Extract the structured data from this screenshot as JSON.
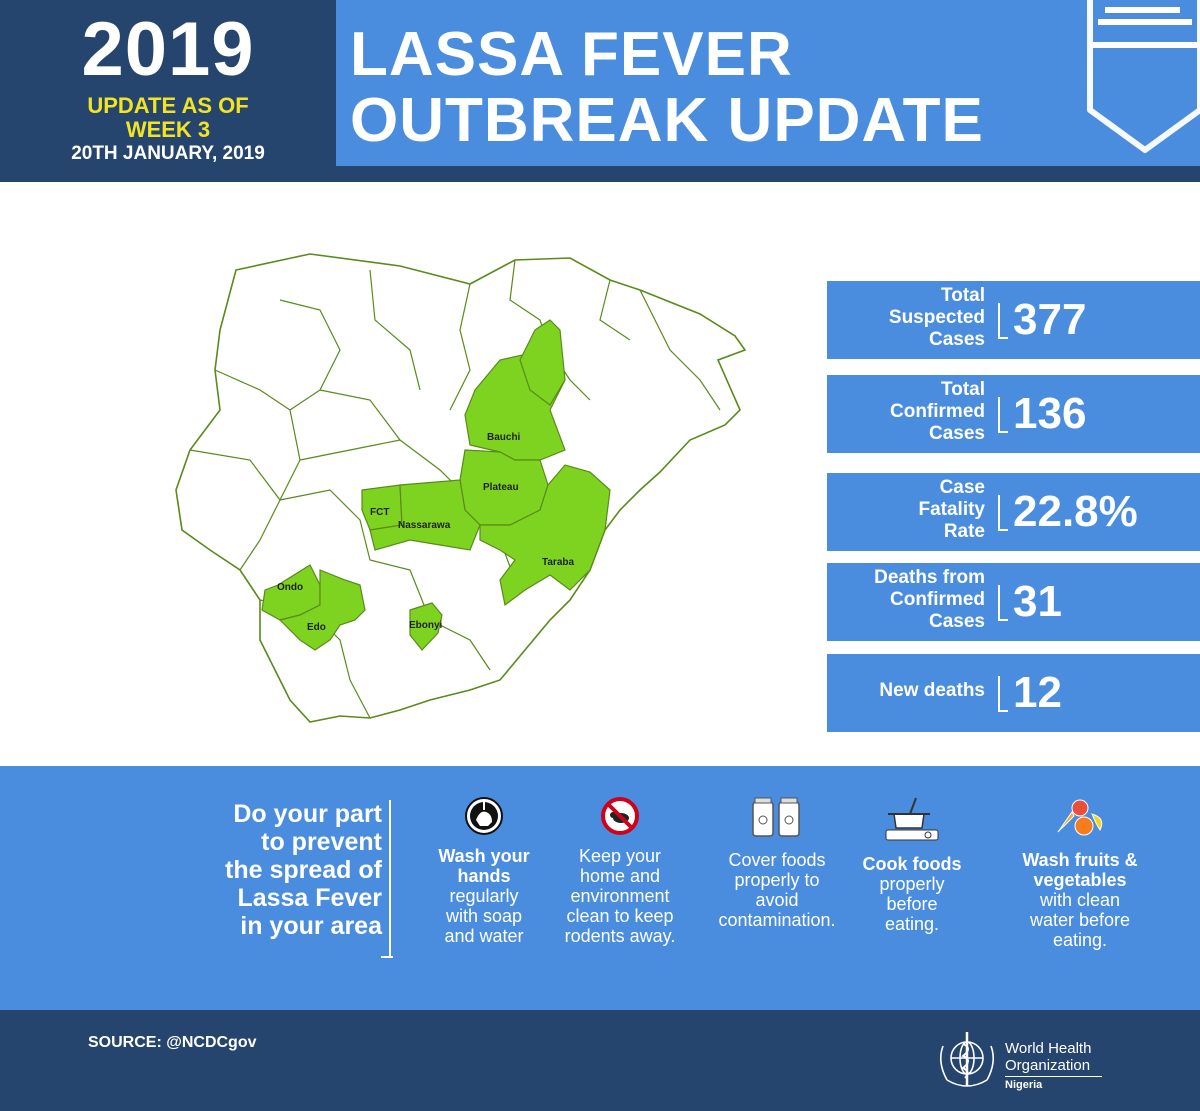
{
  "header": {
    "year": "2019",
    "update_line1": "UPDATE AS OF",
    "update_line2": "WEEK 3",
    "date": "20TH JANUARY, 2019",
    "title_line1": "LASSA FEVER",
    "title_line2": "OUTBREAK UPDATE"
  },
  "map": {
    "highlight_color": "#7ed321",
    "states": [
      "Bauchi",
      "Plateau",
      "FCT",
      "Nassarawa",
      "Taraba",
      "Ondo",
      "Edo",
      "Ebonyi"
    ]
  },
  "stats": [
    {
      "label_lines": [
        "Total",
        "Suspected",
        "Cases"
      ],
      "value": "377"
    },
    {
      "label_lines": [
        "Total",
        "Confirmed",
        "Cases"
      ],
      "value": "136"
    },
    {
      "label_lines": [
        "Case",
        "Fatality",
        "Rate"
      ],
      "value": "22.8%"
    },
    {
      "label_lines": [
        "Deaths from",
        "Confirmed",
        "Cases"
      ],
      "value": "31"
    },
    {
      "label_lines": [
        "New deaths"
      ],
      "value": "12"
    }
  ],
  "prevention": {
    "heading_lines": [
      "Do your part",
      "to prevent",
      "the spread of",
      "Lassa Fever",
      "in your area"
    ],
    "tips": [
      {
        "icon": "hand-wash-icon",
        "bold": "Wash your hands",
        "text_lines": [
          "regularly",
          "with soap",
          "and water"
        ]
      },
      {
        "icon": "no-rodent-icon",
        "bold": "",
        "text_lines": [
          "Keep your",
          "home and",
          "environment",
          "clean to keep",
          "rodents away."
        ]
      },
      {
        "icon": "food-jars-icon",
        "bold": "",
        "text_lines": [
          "Cover foods",
          "properly to",
          "avoid",
          "contamination."
        ]
      },
      {
        "icon": "cooking-pot-icon",
        "bold": "Cook foods",
        "text_lines": [
          "properly",
          "before",
          "eating."
        ]
      },
      {
        "icon": "fruits-vegetables-icon",
        "bold": "Wash fruits & vegetables",
        "text_lines": [
          "with clean",
          "water before",
          "eating."
        ]
      }
    ]
  },
  "footer": {
    "source": "SOURCE: @NCDCgov",
    "org_line1": "World Health",
    "org_line2": "Organization",
    "org_country": "Nigeria"
  },
  "colors": {
    "dark_blue": "#25456f",
    "blue": "#4a8ddf",
    "yellow": "#f2e421",
    "green": "#7ed321"
  }
}
